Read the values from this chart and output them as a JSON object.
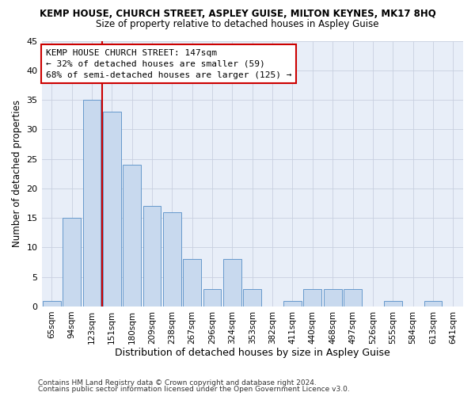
{
  "title": "KEMP HOUSE, CHURCH STREET, ASPLEY GUISE, MILTON KEYNES, MK17 8HQ",
  "subtitle": "Size of property relative to detached houses in Aspley Guise",
  "xlabel": "Distribution of detached houses by size in Aspley Guise",
  "ylabel": "Number of detached properties",
  "categories": [
    "65sqm",
    "94sqm",
    "123sqm",
    "151sqm",
    "180sqm",
    "209sqm",
    "238sqm",
    "267sqm",
    "296sqm",
    "324sqm",
    "353sqm",
    "382sqm",
    "411sqm",
    "440sqm",
    "468sqm",
    "497sqm",
    "526sqm",
    "555sqm",
    "584sqm",
    "613sqm",
    "641sqm"
  ],
  "values": [
    1,
    15,
    35,
    33,
    24,
    17,
    16,
    8,
    3,
    8,
    3,
    0,
    1,
    3,
    3,
    3,
    0,
    1,
    0,
    1,
    0
  ],
  "bar_color": "#c8d9ee",
  "bar_edge_color": "#6699cc",
  "vline_color": "#cc0000",
  "annotation_lines": [
    "KEMP HOUSE CHURCH STREET: 147sqm",
    "← 32% of detached houses are smaller (59)",
    "68% of semi-detached houses are larger (125) →"
  ],
  "annotation_box_color": "#ffffff",
  "annotation_border_color": "#cc0000",
  "footer_line1": "Contains HM Land Registry data © Crown copyright and database right 2024.",
  "footer_line2": "Contains public sector information licensed under the Open Government Licence v3.0.",
  "ylim": [
    0,
    45
  ],
  "yticks": [
    0,
    5,
    10,
    15,
    20,
    25,
    30,
    35,
    40,
    45
  ],
  "plot_bg_color": "#e8eef8",
  "background_color": "#ffffff",
  "grid_color": "#c8d0e0"
}
